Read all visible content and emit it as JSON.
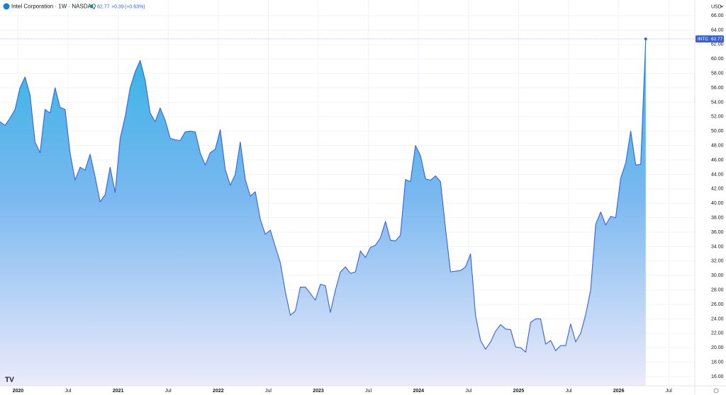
{
  "chart_data": {
    "type": "area",
    "title": "Intel Corporation · 1W · NASDAQ",
    "change": "+0.39",
    "change_percent": "(+0.63%)",
    "currency": "USD",
    "x": [
      2019.82,
      2019.87,
      2019.92,
      2019.97,
      2020.02,
      2020.07,
      2020.12,
      2020.17,
      2020.22,
      2020.27,
      2020.32,
      2020.37,
      2020.42,
      2020.47,
      2020.52,
      2020.57,
      2020.62,
      2020.67,
      2020.72,
      2020.77,
      2020.82,
      2020.87,
      2020.92,
      2020.97,
      2021.02,
      2021.07,
      2021.12,
      2021.17,
      2021.22,
      2021.27,
      2021.32,
      2021.37,
      2021.42,
      2021.47,
      2021.52,
      2021.57,
      2021.62,
      2021.67,
      2021.72,
      2021.77,
      2021.82,
      2021.87,
      2021.92,
      2021.97,
      2022.02,
      2022.07,
      2022.12,
      2022.17,
      2022.22,
      2022.27,
      2022.32,
      2022.37,
      2022.42,
      2022.47,
      2022.52,
      2022.57,
      2022.62,
      2022.67,
      2022.72,
      2022.77,
      2022.82,
      2022.87,
      2022.92,
      2022.97,
      2023.02,
      2023.07,
      2023.12,
      2023.17,
      2023.22,
      2023.27,
      2023.32,
      2023.37,
      2023.42,
      2023.47,
      2023.52,
      2023.57,
      2023.62,
      2023.67,
      2023.72,
      2023.77,
      2023.82,
      2023.87,
      2023.92,
      2023.97,
      2024.02,
      2024.07,
      2024.12,
      2024.17,
      2024.22,
      2024.27,
      2024.32,
      2024.37,
      2024.42,
      2024.47,
      2024.52,
      2024.57,
      2024.62,
      2024.67,
      2024.72,
      2024.77,
      2024.82,
      2024.87,
      2024.92,
      2024.97,
      2025.02,
      2025.07,
      2025.12,
      2025.17,
      2025.22,
      2025.27,
      2025.32,
      2025.37,
      2025.42,
      2025.47,
      2025.52,
      2025.57,
      2025.62,
      2025.67,
      2025.72,
      2025.77,
      2025.82,
      2025.87,
      2025.92,
      2025.97,
      2026.02,
      2026.07,
      2026.12,
      2026.17,
      2026.22,
      2026.27
    ],
    "series": [
      {
        "name": "INTC",
        "color": "#3a62d7",
        "values": [
          51.3,
          50.8,
          51.8,
          53,
          56,
          57.5,
          55,
          48.5,
          47,
          53,
          52.5,
          56,
          53.3,
          53,
          47,
          43.2,
          45,
          44.6,
          46.8,
          43.7,
          40.2,
          41.2,
          45,
          41.5,
          49,
          52,
          56,
          58.2,
          59.8,
          57,
          52.5,
          51.3,
          53.2,
          51.5,
          49,
          48.8,
          48.7,
          49.9,
          50,
          49.9,
          47,
          45.3,
          47,
          47.5,
          50.2,
          44.7,
          42.5,
          44,
          48.5,
          43.3,
          41,
          41.6,
          37.8,
          35.7,
          36.3,
          34,
          31.8,
          27.8,
          24.5,
          25.1,
          28.4,
          28.4,
          27.5,
          26.6,
          28.8,
          28.6,
          24.9,
          28,
          30.5,
          31.2,
          30.3,
          30.5,
          33.4,
          32.5,
          33.9,
          34.2,
          35.2,
          37.5,
          34.9,
          34.8,
          35.6,
          43.3,
          43,
          48,
          46.6,
          43.4,
          43.2,
          43.8,
          43,
          36.5,
          30.5,
          30.6,
          30.7,
          31.2,
          33,
          24.5,
          21,
          19.8,
          20.8,
          22.3,
          23.2,
          22.6,
          22.5,
          20.1,
          20,
          19.4,
          23.5,
          24,
          24,
          20.5,
          21,
          19.6,
          20.3,
          20.3,
          23.3,
          20.8,
          22,
          24.6,
          28,
          37.1,
          38.8,
          37,
          38.2,
          38,
          43.5,
          45.6,
          50,
          45.3,
          45.4,
          62.77
        ]
      }
    ],
    "xlim": [
      2019.82,
      2026.76
    ],
    "xticks": [
      {
        "value": 2020,
        "label": "2020"
      },
      {
        "value": 2020.5,
        "label": "Jul"
      },
      {
        "value": 2021,
        "label": "2021"
      },
      {
        "value": 2021.5,
        "label": "Jul"
      },
      {
        "value": 2022,
        "label": "2022"
      },
      {
        "value": 2022.5,
        "label": "Jul"
      },
      {
        "value": 2023,
        "label": "2023"
      },
      {
        "value": 2023.5,
        "label": "Jul"
      },
      {
        "value": 2024,
        "label": "2024"
      },
      {
        "value": 2024.5,
        "label": "Jul"
      },
      {
        "value": 2025,
        "label": "2025"
      },
      {
        "value": 2025.5,
        "label": "Jul"
      },
      {
        "value": 2026,
        "label": "2026"
      },
      {
        "value": 2026.5,
        "label": "Jul"
      }
    ],
    "ylim": [
      14.73,
      68.16
    ],
    "yticks": [
      {
        "value": 66,
        "label": "66.00"
      },
      {
        "value": 64,
        "label": "64.00"
      },
      {
        "value": 62,
        "label": "62.00"
      },
      {
        "value": 60,
        "label": "60.00"
      },
      {
        "value": 58,
        "label": "58.00"
      },
      {
        "value": 56,
        "label": "56.00"
      },
      {
        "value": 54,
        "label": "54.00"
      },
      {
        "value": 52,
        "label": "52.00"
      },
      {
        "value": 50,
        "label": "50.00"
      },
      {
        "value": 48,
        "label": "48.00"
      },
      {
        "value": 46,
        "label": "46.00"
      },
      {
        "value": 44,
        "label": "44.00"
      },
      {
        "value": 42,
        "label": "42.00"
      },
      {
        "value": 40,
        "label": "40.00"
      },
      {
        "value": 38,
        "label": "38.00"
      },
      {
        "value": 36,
        "label": "36.00"
      },
      {
        "value": 34,
        "label": "34.00"
      },
      {
        "value": 32,
        "label": "32.00"
      },
      {
        "value": 30,
        "label": "30.00"
      },
      {
        "value": 28,
        "label": "28.00"
      },
      {
        "value": 26,
        "label": "26.00"
      },
      {
        "value": 24,
        "label": "24.00"
      },
      {
        "value": 22,
        "label": "22.00"
      },
      {
        "value": 20,
        "label": "20.00"
      },
      {
        "value": 18,
        "label": "18.00"
      },
      {
        "value": 16,
        "label": "16.00"
      }
    ],
    "grid": true
  }
}
